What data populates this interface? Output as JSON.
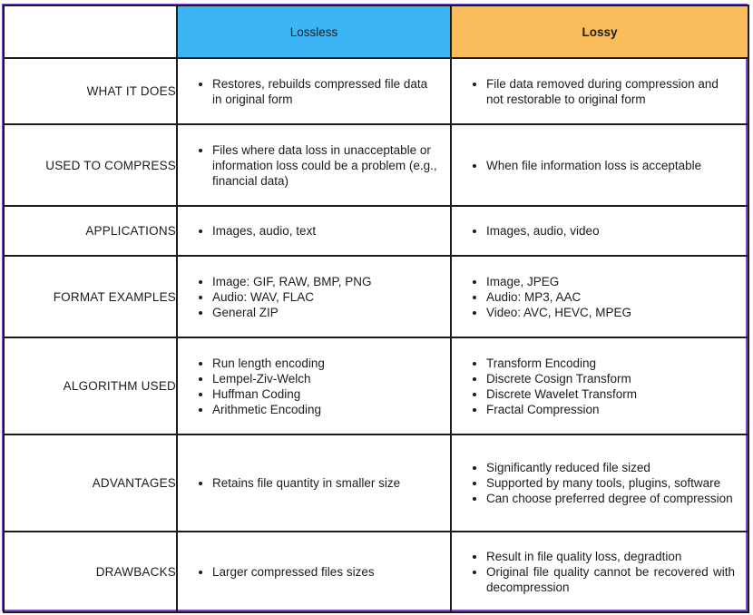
{
  "table": {
    "headers": {
      "corner": "",
      "lossless": "Lossless",
      "lossy": "Lossy"
    },
    "colors": {
      "lossless_header": "#3db5f5",
      "lossy_header": "#fbbd5b",
      "frame_border": "#7d4fd6"
    },
    "rows": [
      {
        "label": "WHAT IT DOES",
        "lossless": [
          "Restores, rebuilds compressed file data in original form"
        ],
        "lossy": [
          "File data removed during compression and not restorable to original form"
        ]
      },
      {
        "label": "USED TO COMPRESS",
        "lossless": [
          "Files where data loss in unacceptable or information loss could be a problem (e.g., financial data)"
        ],
        "lossy": [
          "When file information loss is acceptable"
        ]
      },
      {
        "label": "APPLICATIONS",
        "lossless": [
          "Images, audio, text"
        ],
        "lossy": [
          "Images, audio, video"
        ]
      },
      {
        "label": "FORMAT EXAMPLES",
        "lossless": [
          "Image: GIF, RAW, BMP, PNG",
          "Audio: WAV, FLAC",
          "General ZIP"
        ],
        "lossy": [
          "Image, JPEG",
          "Audio: MP3, AAC",
          "Video: AVC, HEVC, MPEG"
        ]
      },
      {
        "label": "ALGORITHM USED",
        "lossless": [
          "Run length encoding",
          "Lempel-Ziv-Welch",
          "Huffman Coding",
          "Arithmetic Encoding"
        ],
        "lossy": [
          "Transform Encoding",
          "Discrete Cosign Transform",
          "Discrete Wavelet Transform",
          "Fractal Compression"
        ]
      },
      {
        "label": "ADVANTAGES",
        "lossless": [
          "Retains file quantity in smaller size"
        ],
        "lossy": [
          "Significantly reduced file sized",
          "Supported by many tools, plugins, software",
          "Can choose preferred degree of compression"
        ]
      },
      {
        "label": "DRAWBACKS",
        "lossless": [
          "Larger compressed files sizes"
        ],
        "lossy": [
          "Result in file quality loss, degradtion",
          "Original file quality cannot be recovered with decompression"
        ]
      }
    ]
  }
}
